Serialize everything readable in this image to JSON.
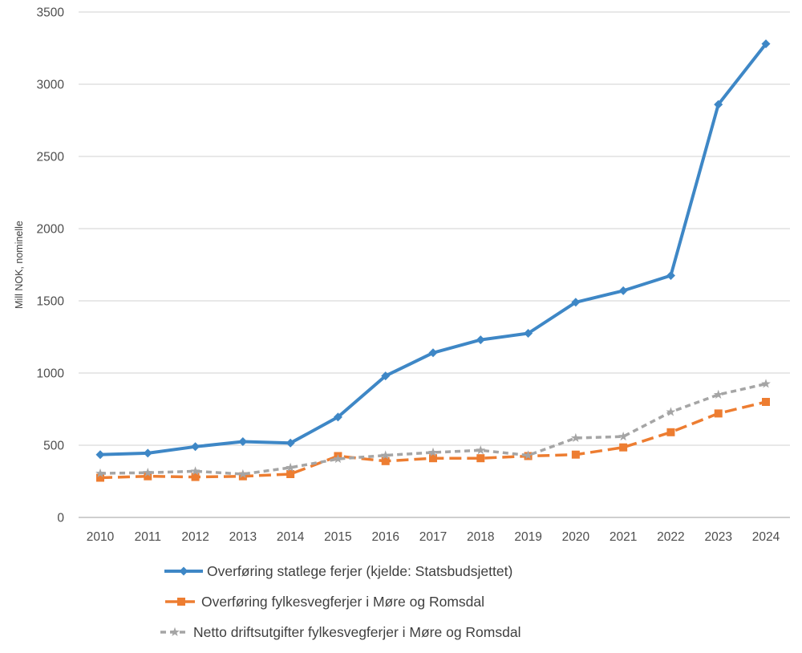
{
  "chart_data": {
    "type": "line",
    "title": "",
    "xlabel": "",
    "ylabel": "Mill NOK, nominelle",
    "x": [
      2010,
      2011,
      2012,
      2013,
      2014,
      2015,
      2016,
      2017,
      2018,
      2019,
      2020,
      2021,
      2022,
      2023,
      2024
    ],
    "ylim": [
      0,
      3500
    ],
    "yticks": [
      0,
      500,
      1000,
      1500,
      2000,
      2500,
      3000,
      3500
    ],
    "grid": "horizontal",
    "legend_position": "bottom-left",
    "series": [
      {
        "name": "Overføring statlege ferjer (kjelde: Statsbudsjettet)",
        "color": "#3E87C6",
        "marker": "diamond",
        "line_style": "solid",
        "values": [
          435,
          445,
          490,
          525,
          515,
          695,
          980,
          1140,
          1230,
          1275,
          1490,
          1570,
          1675,
          2860,
          3280
        ]
      },
      {
        "name": "Overføring fylkesvegferjer i Møre og Romsdal",
        "color": "#ED7D31",
        "marker": "square",
        "line_style": "long-dash",
        "values": [
          275,
          285,
          280,
          285,
          300,
          425,
          390,
          410,
          410,
          425,
          435,
          485,
          590,
          720,
          800
        ]
      },
      {
        "name": "Netto driftsutgifter fylkesvegferjer i Møre og Romsdal",
        "color": "#A5A5A5",
        "marker": "star",
        "line_style": "dash",
        "values": [
          305,
          310,
          320,
          300,
          345,
          405,
          430,
          450,
          465,
          430,
          550,
          560,
          730,
          850,
          925
        ]
      }
    ]
  },
  "colors": {
    "gridline": "#D9D9D9",
    "axis_line": "#BFBFBF",
    "tick_text": "#4D4D4D",
    "axis_title_text": "#404040",
    "legend_text": "#3F3F3F",
    "background": "#FFFFFF"
  }
}
